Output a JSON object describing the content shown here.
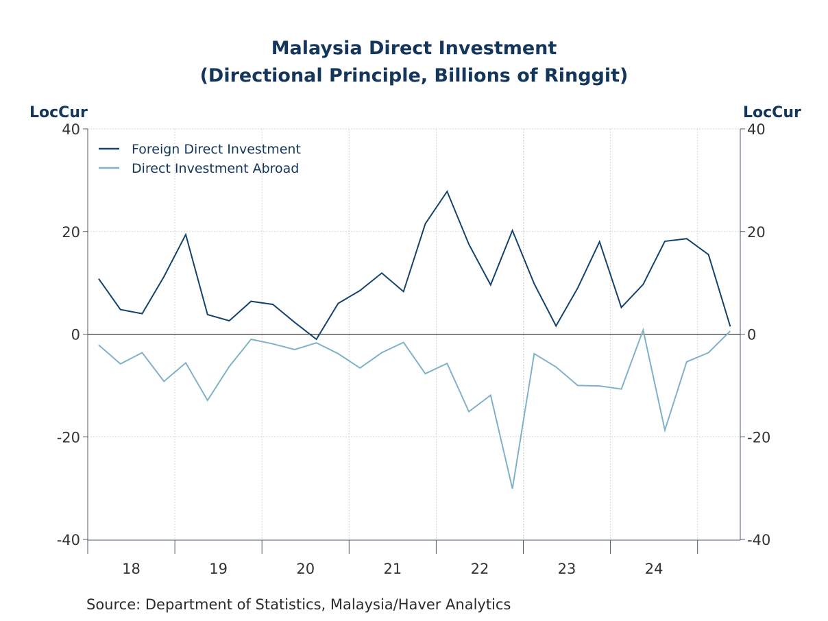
{
  "chart_data": {
    "type": "line",
    "title": "Malaysia Direct Investment",
    "subtitle": "(Directional Principle, Billions of Ringgit)",
    "left_axis_unit": "LocCur",
    "right_axis_unit": "LocCur",
    "source": "Source:  Department of Statistics, Malaysia/Haver Analytics",
    "ylim": [
      -40,
      40
    ],
    "y_ticks": [
      "40",
      "20",
      "0",
      "-20",
      "-40"
    ],
    "y_tick_values": [
      40,
      20,
      0,
      -20,
      -40
    ],
    "x_tick_labels": [
      "18",
      "19",
      "20",
      "21",
      "22",
      "23",
      "24"
    ],
    "grid": true,
    "legend_position": "top-left",
    "x": [
      "2018-Q1",
      "2018-Q2",
      "2018-Q3",
      "2018-Q4",
      "2019-Q1",
      "2019-Q2",
      "2019-Q3",
      "2019-Q4",
      "2020-Q1",
      "2020-Q2",
      "2020-Q3",
      "2020-Q4",
      "2021-Q1",
      "2021-Q2",
      "2021-Q3",
      "2021-Q4",
      "2022-Q1",
      "2022-Q2",
      "2022-Q3",
      "2022-Q4",
      "2023-Q1",
      "2023-Q2",
      "2023-Q3",
      "2023-Q4",
      "2024-Q1",
      "2024-Q2",
      "2024-Q3",
      "2024-Q4",
      "2025-Q1",
      "2025-Q2"
    ],
    "series": [
      {
        "name": "Foreign Direct Investment",
        "color": "#13426b",
        "values": [
          10.8,
          4.8,
          4.0,
          11.2,
          19.4,
          3.8,
          2.6,
          6.4,
          5.8,
          2.3,
          -1.0,
          6.0,
          8.5,
          11.9,
          8.3,
          21.5,
          27.8,
          17.5,
          9.6,
          20.2,
          9.8,
          1.6,
          9.0,
          18.0,
          5.2,
          9.7,
          18.1,
          18.6,
          15.5,
          1.5
        ]
      },
      {
        "name": "Direct Investment Abroad",
        "color": "#7fb2c9",
        "values": [
          -2.1,
          -5.8,
          -3.6,
          -9.2,
          -5.6,
          -12.9,
          -6.3,
          -1.0,
          -1.9,
          -3.0,
          -1.7,
          -3.8,
          -6.6,
          -3.6,
          -1.6,
          -7.7,
          -5.7,
          -15.1,
          -11.9,
          -30.1,
          -3.8,
          -6.4,
          -10.0,
          -10.1,
          -10.7,
          0.8,
          -18.7,
          -5.4,
          -3.6,
          0.6
        ]
      }
    ]
  }
}
